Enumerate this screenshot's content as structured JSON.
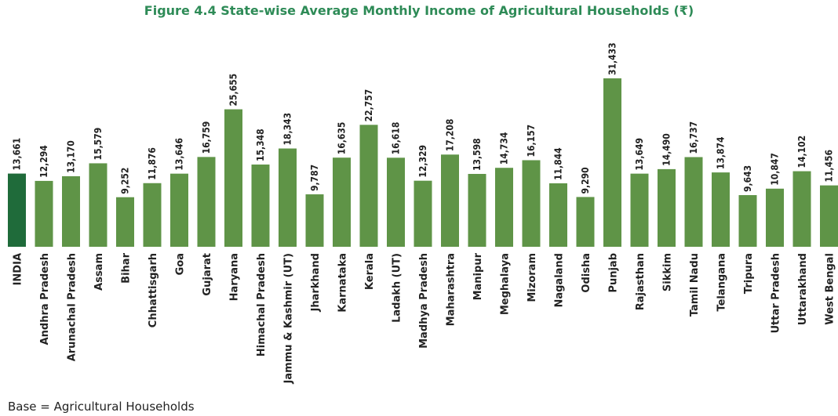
{
  "chart_data": {
    "type": "bar",
    "title": "Figure 4.4 State-wise Average Monthly Income of Agricultural Households (₹)",
    "note": "Base = Agricultural Households",
    "categories": [
      "INDIA",
      "Andhra Pradesh",
      "Arunachal Pradesh",
      "Assam",
      "Bihar",
      "Chhattisgarh",
      "Goa",
      "Gujarat",
      "Haryana",
      "Himachal Pradesh",
      "Jammu & Kashmir (UT)",
      "Jharkhand",
      "Karnataka",
      "Kerala",
      "Ladakh (UT)",
      "Madhya Pradesh",
      "Maharashtra",
      "Manipur",
      "Meghalaya",
      "Mizoram",
      "Nagaland",
      "Odisha",
      "Punjab",
      "Rajasthan",
      "Sikkim",
      "Tamil Nadu",
      "Telangana",
      "Tripura",
      "Uttar Pradesh",
      "Uttarakhand",
      "West Bengal"
    ],
    "values": [
      13661,
      12294,
      13170,
      15579,
      9252,
      11876,
      13646,
      16759,
      25655,
      15348,
      18343,
      9787,
      16635,
      22757,
      16618,
      12329,
      17208,
      13598,
      14734,
      16157,
      11844,
      9290,
      31433,
      13649,
      14490,
      16737,
      13874,
      9643,
      10847,
      14102,
      11456
    ],
    "labels": [
      "13,661",
      "12,294",
      "13,170",
      "15,579",
      "9,252",
      "11,876",
      "13,646",
      "16,759",
      "25,655",
      "15,348",
      "18,343",
      "9,787",
      "16,635",
      "22,757",
      "16,618",
      "12,329",
      "17,208",
      "13,598",
      "14,734",
      "16,157",
      "11,844",
      "9,290",
      "31,433",
      "13,649",
      "14,490",
      "16,737",
      "13,874",
      "9,643",
      "10,847",
      "14,102",
      "11,456"
    ],
    "xlabel": "",
    "ylabel": "",
    "ylim": [
      0,
      31433
    ],
    "grid": false,
    "colors": {
      "highlight": "#1f6b3a",
      "bar": "#5f9447",
      "title": "#2e8b57"
    }
  }
}
